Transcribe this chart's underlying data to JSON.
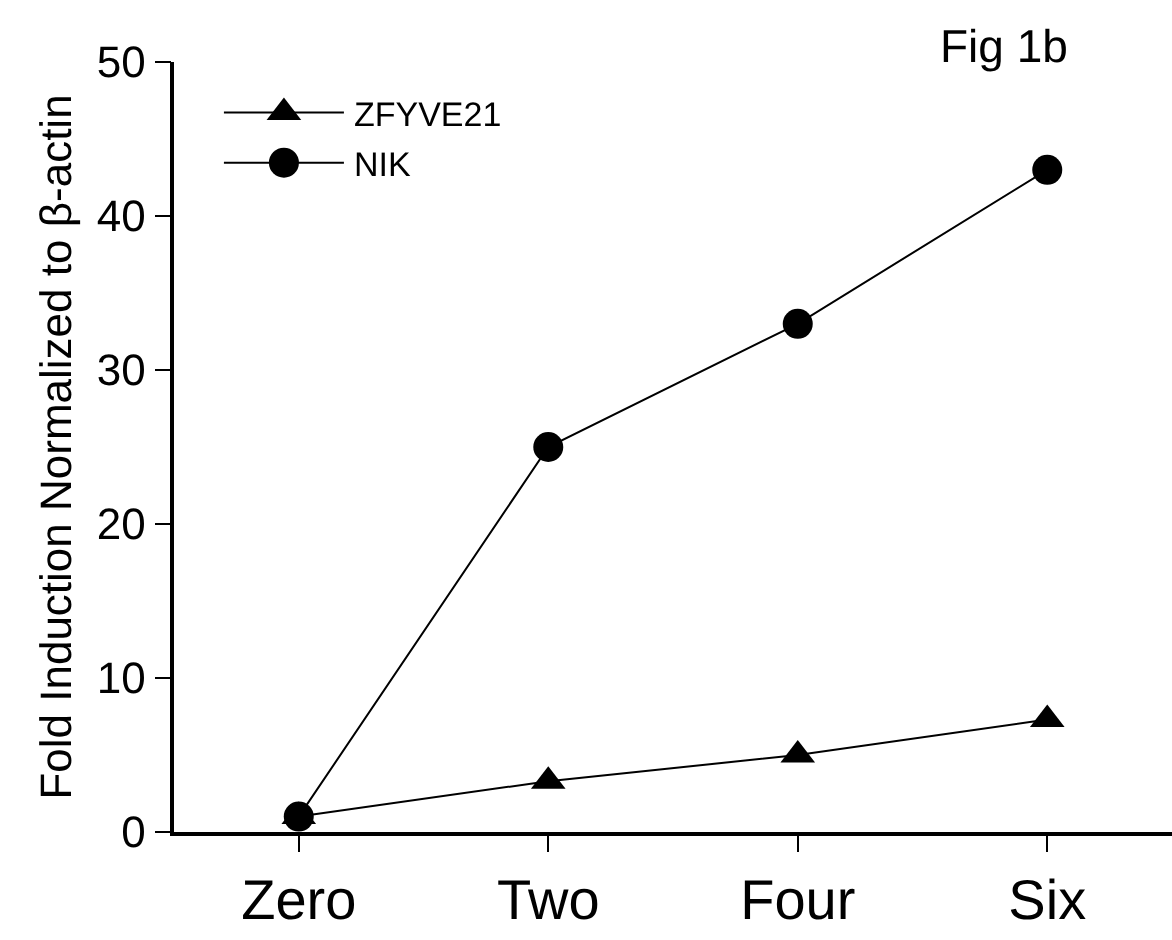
{
  "chart_data": {
    "type": "line",
    "ylabel": "Fold Induction Normalized to β-actin",
    "annotations": [
      "Fig 1b"
    ],
    "categories": [
      "Zero",
      "Two",
      "Four",
      "Six"
    ],
    "series": [
      {
        "name": "ZFYVE21",
        "color": "#000000",
        "marker": "triangle",
        "values": [
          1,
          3.3,
          5,
          7.3
        ]
      },
      {
        "name": "NIK",
        "color": "#000000",
        "marker": "circle",
        "values": [
          1,
          25,
          33,
          43
        ]
      }
    ],
    "ylim": [
      0,
      50
    ],
    "yticks": [
      0,
      10,
      20,
      30,
      40,
      50
    ],
    "grid": false,
    "legend": "top left",
    "line_style": "solid"
  }
}
